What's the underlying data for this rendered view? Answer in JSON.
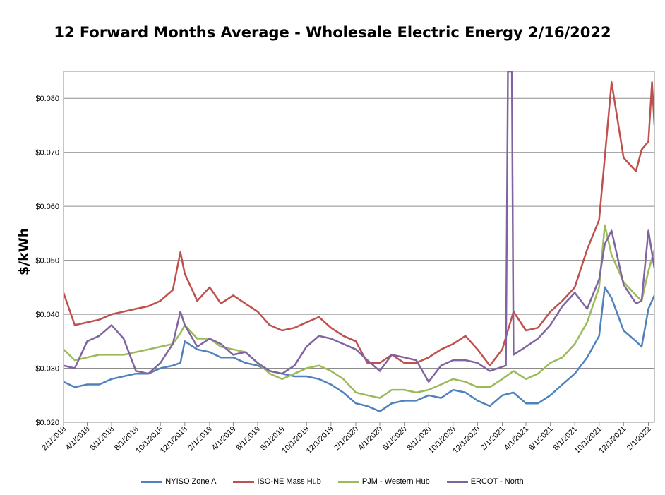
{
  "chart_data": {
    "type": "line",
    "title": "12 Forward Months Average - Wholesale Electric Energy 2/16/2022",
    "xlabel": "",
    "ylabel": "$/kWh",
    "ylim": [
      0.02,
      0.085
    ],
    "y_ticks": [
      "$0.020",
      "$0.030",
      "$0.040",
      "$0.050",
      "$0.060",
      "$0.070",
      "$0.080"
    ],
    "x_ticks": [
      "2/1/2018",
      "4/1/2018",
      "6/1/2018",
      "8/1/2018",
      "10/1/2018",
      "12/1/2018",
      "2/1/2019",
      "4/1/2019",
      "6/1/2019",
      "8/1/2019",
      "10/1/2019",
      "12/1/2019",
      "2/1/2020",
      "4/1/2020",
      "6/1/2020",
      "8/1/2020",
      "10/1/2020",
      "12/1/2020",
      "2/1/2021",
      "4/1/2021",
      "6/1/2021",
      "8/1/2021",
      "10/1/2021",
      "12/1/2021",
      "2/1/2022"
    ],
    "x_range": [
      "2/1/2018",
      "2/16/2022"
    ],
    "grid": "horizontal",
    "legend": "bottom",
    "series": [
      {
        "name": "NYISO Zone A",
        "color": "#4F81BD",
        "x": [
          "2/1/2018",
          "3/1/2018",
          "4/1/2018",
          "5/1/2018",
          "6/1/2018",
          "7/1/2018",
          "8/1/2018",
          "9/1/2018",
          "10/1/2018",
          "11/1/2018",
          "11/20/2018",
          "12/1/2018",
          "1/1/2019",
          "2/1/2019",
          "3/1/2019",
          "4/1/2019",
          "5/1/2019",
          "6/1/2019",
          "7/1/2019",
          "8/1/2019",
          "9/1/2019",
          "10/1/2019",
          "11/1/2019",
          "12/1/2019",
          "1/1/2020",
          "2/1/2020",
          "3/1/2020",
          "4/1/2020",
          "5/1/2020",
          "6/1/2020",
          "7/1/2020",
          "8/1/2020",
          "9/1/2020",
          "10/1/2020",
          "11/1/2020",
          "12/1/2020",
          "1/1/2021",
          "2/1/2021",
          "3/1/2021",
          "4/1/2021",
          "5/1/2021",
          "6/1/2021",
          "7/1/2021",
          "8/1/2021",
          "9/1/2021",
          "10/1/2021",
          "10/15/2021",
          "11/1/2021",
          "12/1/2021",
          "1/1/2022",
          "1/15/2022",
          "2/1/2022",
          "2/16/2022"
        ],
        "values": [
          0.0275,
          0.0265,
          0.027,
          0.027,
          0.028,
          0.0285,
          0.029,
          0.029,
          0.03,
          0.0305,
          0.031,
          0.035,
          0.0335,
          0.033,
          0.032,
          0.032,
          0.031,
          0.0305,
          0.0295,
          0.029,
          0.0285,
          0.0285,
          0.028,
          0.027,
          0.0255,
          0.0235,
          0.023,
          0.022,
          0.0235,
          0.024,
          0.024,
          0.025,
          0.0245,
          0.026,
          0.0255,
          0.024,
          0.023,
          0.025,
          0.0255,
          0.0235,
          0.0235,
          0.025,
          0.027,
          0.029,
          0.032,
          0.036,
          0.045,
          0.043,
          0.037,
          0.035,
          0.034,
          0.041,
          0.0435
        ]
      },
      {
        "name": "ISO-NE Mass Hub",
        "color": "#C0504D",
        "x": [
          "2/1/2018",
          "3/1/2018",
          "4/1/2018",
          "5/1/2018",
          "6/1/2018",
          "7/1/2018",
          "8/1/2018",
          "9/1/2018",
          "10/1/2018",
          "11/1/2018",
          "11/20/2018",
          "12/1/2018",
          "1/1/2019",
          "2/1/2019",
          "3/1/2019",
          "4/1/2019",
          "5/1/2019",
          "6/1/2019",
          "7/1/2019",
          "8/1/2019",
          "9/1/2019",
          "10/1/2019",
          "11/1/2019",
          "12/1/2019",
          "1/1/2020",
          "2/1/2020",
          "3/1/2020",
          "4/1/2020",
          "5/1/2020",
          "6/1/2020",
          "7/1/2020",
          "8/1/2020",
          "9/1/2020",
          "10/1/2020",
          "11/1/2020",
          "12/1/2020",
          "1/1/2021",
          "2/1/2021",
          "3/1/2021",
          "4/1/2021",
          "5/1/2021",
          "6/1/2021",
          "7/1/2021",
          "8/1/2021",
          "9/1/2021",
          "10/1/2021",
          "10/15/2021",
          "11/1/2021",
          "12/1/2021",
          "1/1/2022",
          "1/15/2022",
          "2/1/2022",
          "2/10/2022",
          "2/16/2022"
        ],
        "values": [
          0.044,
          0.038,
          0.0385,
          0.039,
          0.04,
          0.0405,
          0.041,
          0.0415,
          0.0425,
          0.0445,
          0.0515,
          0.0475,
          0.0425,
          0.045,
          0.042,
          0.0435,
          0.042,
          0.0405,
          0.038,
          0.037,
          0.0375,
          0.0385,
          0.0395,
          0.0375,
          0.036,
          0.035,
          0.031,
          0.031,
          0.0325,
          0.031,
          0.031,
          0.032,
          0.0335,
          0.0345,
          0.036,
          0.0335,
          0.0305,
          0.0335,
          0.0405,
          0.037,
          0.0375,
          0.0405,
          0.0425,
          0.045,
          0.052,
          0.0575,
          0.069,
          0.083,
          0.069,
          0.0665,
          0.0705,
          0.072,
          0.083,
          0.075
        ]
      },
      {
        "name": "PJM - Western Hub",
        "color": "#9BBB59",
        "x": [
          "2/1/2018",
          "3/1/2018",
          "4/1/2018",
          "5/1/2018",
          "6/1/2018",
          "7/1/2018",
          "8/1/2018",
          "9/1/2018",
          "10/1/2018",
          "11/1/2018",
          "11/20/2018",
          "12/1/2018",
          "1/1/2019",
          "2/1/2019",
          "3/1/2019",
          "4/1/2019",
          "5/1/2019",
          "6/1/2019",
          "7/1/2019",
          "8/1/2019",
          "9/1/2019",
          "10/1/2019",
          "11/1/2019",
          "12/1/2019",
          "1/1/2020",
          "2/1/2020",
          "3/1/2020",
          "4/1/2020",
          "5/1/2020",
          "6/1/2020",
          "7/1/2020",
          "8/1/2020",
          "9/1/2020",
          "10/1/2020",
          "11/1/2020",
          "12/1/2020",
          "1/1/2021",
          "2/1/2021",
          "3/1/2021",
          "4/1/2021",
          "5/1/2021",
          "6/1/2021",
          "7/1/2021",
          "8/1/2021",
          "9/1/2021",
          "10/1/2021",
          "10/15/2021",
          "11/1/2021",
          "12/1/2021",
          "1/1/2022",
          "1/15/2022",
          "2/1/2022",
          "2/16/2022"
        ],
        "values": [
          0.0335,
          0.0315,
          0.032,
          0.0325,
          0.0325,
          0.0325,
          0.033,
          0.0335,
          0.034,
          0.0345,
          0.0365,
          0.038,
          0.0355,
          0.0355,
          0.034,
          0.0335,
          0.033,
          0.031,
          0.029,
          0.028,
          0.029,
          0.03,
          0.0305,
          0.0295,
          0.028,
          0.0255,
          0.025,
          0.0245,
          0.026,
          0.026,
          0.0255,
          0.026,
          0.027,
          0.028,
          0.0275,
          0.0265,
          0.0265,
          0.028,
          0.0295,
          0.028,
          0.029,
          0.031,
          0.032,
          0.0345,
          0.0385,
          0.045,
          0.0565,
          0.051,
          0.046,
          0.0435,
          0.0425,
          0.048,
          0.052
        ]
      },
      {
        "name": "ERCOT - North",
        "color": "#8064A2",
        "x": [
          "2/1/2018",
          "3/1/2018",
          "4/1/2018",
          "5/1/2018",
          "6/1/2018",
          "7/1/2018",
          "8/1/2018",
          "9/1/2018",
          "10/1/2018",
          "11/1/2018",
          "11/20/2018",
          "12/1/2018",
          "1/1/2019",
          "2/1/2019",
          "3/1/2019",
          "4/1/2019",
          "5/1/2019",
          "6/1/2019",
          "7/1/2019",
          "8/1/2019",
          "9/1/2019",
          "10/1/2019",
          "11/1/2019",
          "12/1/2019",
          "1/1/2020",
          "2/1/2020",
          "3/1/2020",
          "4/1/2020",
          "5/1/2020",
          "6/1/2020",
          "7/1/2020",
          "8/1/2020",
          "9/1/2020",
          "10/1/2020",
          "11/1/2020",
          "12/1/2020",
          "1/1/2021",
          "2/10/2021",
          "2/15/2021",
          "2/25/2021",
          "3/1/2021",
          "4/1/2021",
          "5/1/2021",
          "6/1/2021",
          "7/1/2021",
          "8/1/2021",
          "9/1/2021",
          "10/1/2021",
          "10/15/2021",
          "11/1/2021",
          "12/1/2021",
          "1/1/2022",
          "1/15/2022",
          "2/1/2022",
          "2/16/2022"
        ],
        "values": [
          0.0305,
          0.03,
          0.035,
          0.036,
          0.038,
          0.0355,
          0.0295,
          0.029,
          0.031,
          0.0345,
          0.0405,
          0.038,
          0.034,
          0.0355,
          0.0345,
          0.0325,
          0.033,
          0.031,
          0.0295,
          0.029,
          0.0305,
          0.034,
          0.036,
          0.0355,
          0.0345,
          0.0335,
          0.0315,
          0.0295,
          0.0325,
          0.032,
          0.0315,
          0.0275,
          0.0305,
          0.0315,
          0.0315,
          0.031,
          0.0295,
          0.0305,
          0.085,
          0.085,
          0.0325,
          0.034,
          0.0355,
          0.038,
          0.0415,
          0.044,
          0.041,
          0.0465,
          0.053,
          0.0555,
          0.0455,
          0.042,
          0.0425,
          0.0555,
          0.0485
        ]
      }
    ]
  }
}
